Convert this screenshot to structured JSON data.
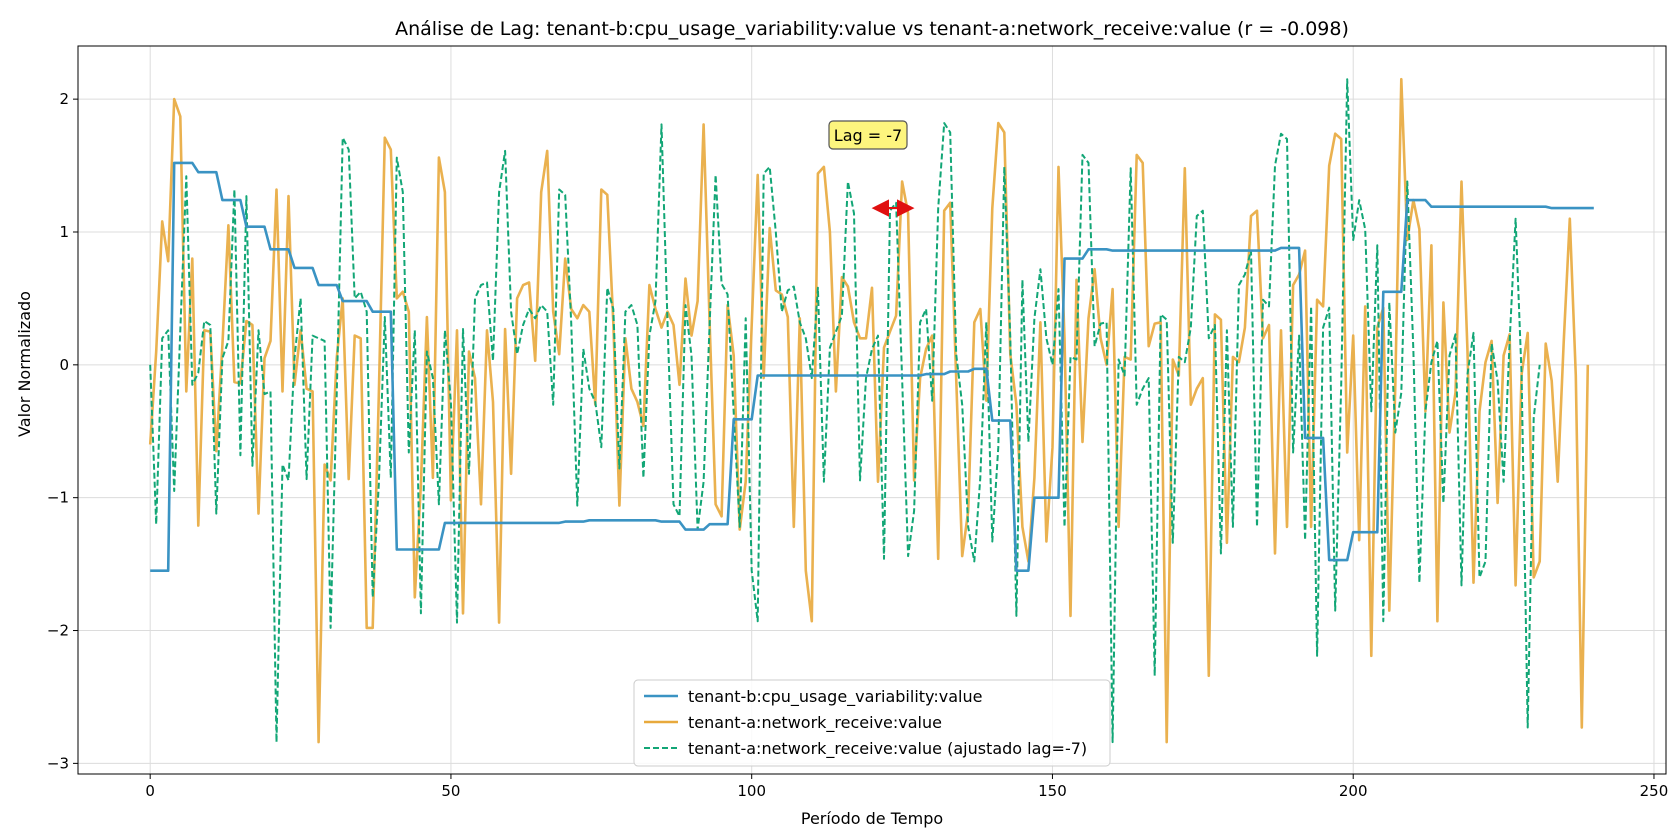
{
  "chart_data": {
    "type": "line",
    "title": "Análise de Lag: tenant-b:cpu_usage_variability:value vs tenant-a:network_receive:value (r = -0.098)",
    "xlabel": "Período de Tempo",
    "ylabel": "Valor Normalizado",
    "xlim": [
      -12,
      252
    ],
    "ylim": [
      -3.08,
      2.4
    ],
    "xticks": [
      0,
      50,
      100,
      150,
      200,
      250
    ],
    "yticks": [
      -3,
      -2,
      -1,
      0,
      1,
      2
    ],
    "xtick_labels": [
      "0",
      "50",
      "100",
      "150",
      "200",
      "250"
    ],
    "ytick_labels": [
      "−3",
      "−2",
      "−1",
      "0",
      "1",
      "2"
    ],
    "grid": true,
    "legend_position": "lower-center",
    "annotation": {
      "text": "Lag = -7",
      "x": 120,
      "y": 1.18,
      "arrow_to_x": 127
    },
    "series": [
      {
        "name": "tenant-b:cpu_usage_variability:value",
        "color": "#3a93c3",
        "style": "solid",
        "steps": [
          [
            0,
            -1.55
          ],
          [
            3,
            -1.55
          ],
          [
            4,
            1.52
          ],
          [
            7,
            1.52
          ],
          [
            8,
            1.45
          ],
          [
            11,
            1.45
          ],
          [
            12,
            1.24
          ],
          [
            15,
            1.24
          ],
          [
            16,
            1.04
          ],
          [
            19,
            1.04
          ],
          [
            20,
            0.87
          ],
          [
            23,
            0.87
          ],
          [
            24,
            0.73
          ],
          [
            27,
            0.73
          ],
          [
            28,
            0.6
          ],
          [
            31,
            0.6
          ],
          [
            32,
            0.48
          ],
          [
            36,
            0.48
          ],
          [
            37,
            0.4
          ],
          [
            40,
            0.4
          ],
          [
            41,
            -1.39
          ],
          [
            48,
            -1.39
          ],
          [
            49,
            -1.19
          ],
          [
            68,
            -1.19
          ],
          [
            69,
            -1.18
          ],
          [
            72,
            -1.18
          ],
          [
            73,
            -1.17
          ],
          [
            84,
            -1.17
          ],
          [
            85,
            -1.18
          ],
          [
            88,
            -1.18
          ],
          [
            89,
            -1.24
          ],
          [
            92,
            -1.24
          ],
          [
            93,
            -1.2
          ],
          [
            96,
            -1.2
          ],
          [
            97,
            -0.41
          ],
          [
            100,
            -0.41
          ],
          [
            101,
            -0.08
          ],
          [
            128,
            -0.08
          ],
          [
            129,
            -0.07
          ],
          [
            132,
            -0.07
          ],
          [
            133,
            -0.05
          ],
          [
            136,
            -0.05
          ],
          [
            137,
            -0.03
          ],
          [
            139,
            -0.03
          ],
          [
            140,
            -0.42
          ],
          [
            143,
            -0.42
          ],
          [
            144,
            -1.55
          ],
          [
            146,
            -1.55
          ],
          [
            147,
            -1.0
          ],
          [
            151,
            -1.0
          ],
          [
            152,
            0.8
          ],
          [
            155,
            0.8
          ],
          [
            156,
            0.87
          ],
          [
            159,
            0.87
          ],
          [
            160,
            0.86
          ],
          [
            187,
            0.86
          ],
          [
            188,
            0.88
          ],
          [
            191,
            0.88
          ],
          [
            192,
            -0.55
          ],
          [
            195,
            -0.55
          ],
          [
            196,
            -1.47
          ],
          [
            199,
            -1.47
          ],
          [
            200,
            -1.26
          ],
          [
            204,
            -1.26
          ],
          [
            205,
            0.55
          ],
          [
            208,
            0.55
          ],
          [
            209,
            1.24
          ],
          [
            212,
            1.24
          ],
          [
            213,
            1.19
          ],
          [
            232,
            1.19
          ],
          [
            233,
            1.18
          ],
          [
            240,
            1.18
          ]
        ]
      },
      {
        "name": "tenant-a:network_receive:value",
        "color": "#e8a93c",
        "style": "solid",
        "values": [
          -0.6,
          0.1,
          1.08,
          0.78,
          2.0,
          1.87,
          -0.2,
          0.8,
          -1.21,
          0.26,
          0.25,
          -0.65,
          0.15,
          1.05,
          -0.13,
          -0.14,
          0.33,
          0.3,
          -1.12,
          0.05,
          0.18,
          1.32,
          -0.2,
          1.27,
          -0.15,
          0.26,
          -0.18,
          -0.2,
          -2.84,
          -0.75,
          -0.87,
          0.05,
          0.5,
          -0.86,
          0.22,
          0.2,
          -1.98,
          -1.98,
          -0.23,
          1.71,
          1.62,
          0.5,
          0.55,
          0.4,
          -1.75,
          -0.9,
          0.36,
          -0.85,
          1.56,
          1.3,
          -1.02,
          0.26,
          -1.87,
          0.1,
          -0.1,
          -1.05,
          0.26,
          -0.28,
          -1.94,
          0.27,
          -0.82,
          0.5,
          0.6,
          0.62,
          0.03,
          1.3,
          1.61,
          0.4,
          0.08,
          0.8,
          0.42,
          0.35,
          0.45,
          0.4,
          -0.3,
          1.32,
          1.28,
          0.32,
          -1.06,
          0.2,
          -0.18,
          -0.28,
          -0.46,
          0.6,
          0.42,
          0.28,
          0.4,
          0.3,
          -0.15,
          0.65,
          0.22,
          0.48,
          1.81,
          0.32,
          -1.05,
          -1.14,
          0.45,
          0.07,
          -1.24,
          -0.88,
          0.3,
          1.43,
          -0.1,
          1.03,
          0.56,
          0.53,
          0.36,
          -1.22,
          0.35,
          -1.55,
          -1.93,
          1.44,
          1.49,
          1.0,
          -0.2,
          0.66,
          0.59,
          0.32,
          0.2,
          0.2,
          0.58,
          -0.88,
          0.13,
          0.25,
          0.37,
          1.38,
          1.14,
          -0.87,
          -0.1,
          0.12,
          0.22,
          -1.46,
          1.16,
          1.22,
          -0.1,
          -1.44,
          -1.1,
          0.32,
          0.42,
          -0.27,
          1.18,
          1.82,
          1.75,
          0.08,
          -0.3,
          -1.22,
          -1.48,
          -0.85,
          0.32,
          -1.33,
          -0.62,
          1.49,
          0.2,
          -1.89,
          0.64,
          -0.58,
          0.35,
          0.72,
          0.2,
          0.0,
          0.57,
          -1.22,
          0.06,
          0.04,
          1.58,
          1.52,
          0.14,
          0.31,
          0.32,
          -2.84,
          0.04,
          -0.08,
          1.48,
          -0.3,
          -0.18,
          -0.1,
          -2.34,
          0.38,
          0.34,
          -1.34,
          0.06,
          0.02,
          0.28,
          1.12,
          1.16,
          0.2,
          0.3,
          -1.42,
          0.26,
          -1.22,
          0.6,
          0.68,
          0.86,
          -1.22,
          0.49,
          0.44,
          1.5,
          1.74,
          1.7,
          -0.66,
          0.22,
          -1.32,
          0.44,
          -2.19,
          0.28,
          0.43,
          -1.85,
          -0.15,
          2.15,
          0.94,
          1.24,
          1.02,
          -0.35,
          0.9,
          -1.93,
          0.47,
          -0.51,
          -0.21,
          1.38,
          0.1,
          -1.64,
          -0.35,
          0.02,
          0.18,
          -1.04,
          0.07,
          0.23,
          -1.66,
          -0.07,
          0.24,
          -1.6,
          -1.48,
          0.16,
          -0.12,
          -0.88,
          0.17,
          1.1,
          -0.08,
          -2.73,
          0.0
        ]
      },
      {
        "name": "tenant-a:network_receive:value (ajustado lag=-7)",
        "color": "#12a676",
        "style": "dashed",
        "values": [
          0.0,
          -1.2,
          0.2,
          0.26,
          -0.95,
          0.26,
          1.42,
          -0.15,
          -0.06,
          0.33,
          0.3,
          -1.12,
          0.05,
          0.18,
          1.32,
          -0.68,
          1.27,
          -0.76,
          0.26,
          -0.22,
          -0.2,
          -2.84,
          -0.75,
          -0.87,
          0.05,
          0.5,
          -0.86,
          0.22,
          0.2,
          0.18,
          -1.98,
          -0.23,
          1.71,
          1.62,
          0.5,
          0.55,
          0.4,
          -1.75,
          -0.9,
          0.36,
          -0.85,
          1.56,
          1.3,
          -0.66,
          0.26,
          -1.87,
          0.1,
          -0.1,
          -1.05,
          0.26,
          -0.28,
          -1.94,
          0.27,
          -0.82,
          0.5,
          0.6,
          0.62,
          0.03,
          1.3,
          1.61,
          0.4,
          0.08,
          0.3,
          0.42,
          0.35,
          0.45,
          0.4,
          -0.3,
          1.32,
          1.28,
          0.32,
          -1.06,
          0.12,
          -0.18,
          -0.28,
          -0.62,
          0.58,
          0.42,
          -0.78,
          0.4,
          0.45,
          0.3,
          -0.85,
          0.22,
          0.48,
          1.81,
          0.32,
          -1.05,
          -1.14,
          0.45,
          0.07,
          -1.24,
          -0.88,
          0.3,
          1.43,
          0.61,
          0.53,
          -0.36,
          -1.22,
          0.35,
          -1.55,
          -1.93,
          1.44,
          1.49,
          1.0,
          0.4,
          0.56,
          0.59,
          0.32,
          0.2,
          -0.1,
          0.58,
          -0.88,
          0.13,
          0.25,
          0.37,
          1.38,
          1.14,
          -0.87,
          -0.1,
          0.12,
          0.22,
          -1.46,
          1.16,
          1.22,
          -0.1,
          -1.44,
          -1.1,
          0.32,
          0.42,
          -0.27,
          1.18,
          1.82,
          1.75,
          0.08,
          -0.3,
          -1.22,
          -1.48,
          -0.85,
          0.32,
          -1.33,
          -0.62,
          1.49,
          0.2,
          -1.89,
          0.64,
          -0.58,
          0.35,
          0.72,
          0.2,
          0.0,
          0.57,
          -1.22,
          0.06,
          0.04,
          1.58,
          1.52,
          0.14,
          0.31,
          0.32,
          -2.84,
          0.04,
          -0.08,
          1.48,
          -0.3,
          -0.18,
          -0.1,
          -2.34,
          0.38,
          0.34,
          -1.34,
          0.06,
          0.02,
          0.28,
          1.12,
          1.16,
          0.2,
          0.3,
          -1.42,
          0.26,
          -1.22,
          0.6,
          0.68,
          0.86,
          -1.22,
          0.49,
          0.44,
          1.5,
          1.74,
          1.7,
          -0.66,
          0.22,
          -1.32,
          0.44,
          -2.19,
          0.28,
          0.43,
          -1.85,
          -0.15,
          2.15,
          0.94,
          1.24,
          1.02,
          -0.35,
          0.9,
          -1.93,
          0.47,
          -0.51,
          -0.21,
          1.38,
          0.1,
          -1.64,
          -0.35,
          0.02,
          0.18,
          -1.04,
          0.07,
          0.23,
          -1.66,
          -0.07,
          0.24,
          -1.6,
          -1.48,
          0.16,
          -0.12,
          -0.88,
          0.17,
          1.1,
          -0.08,
          -2.73,
          -0.4,
          0.0
        ]
      }
    ]
  }
}
